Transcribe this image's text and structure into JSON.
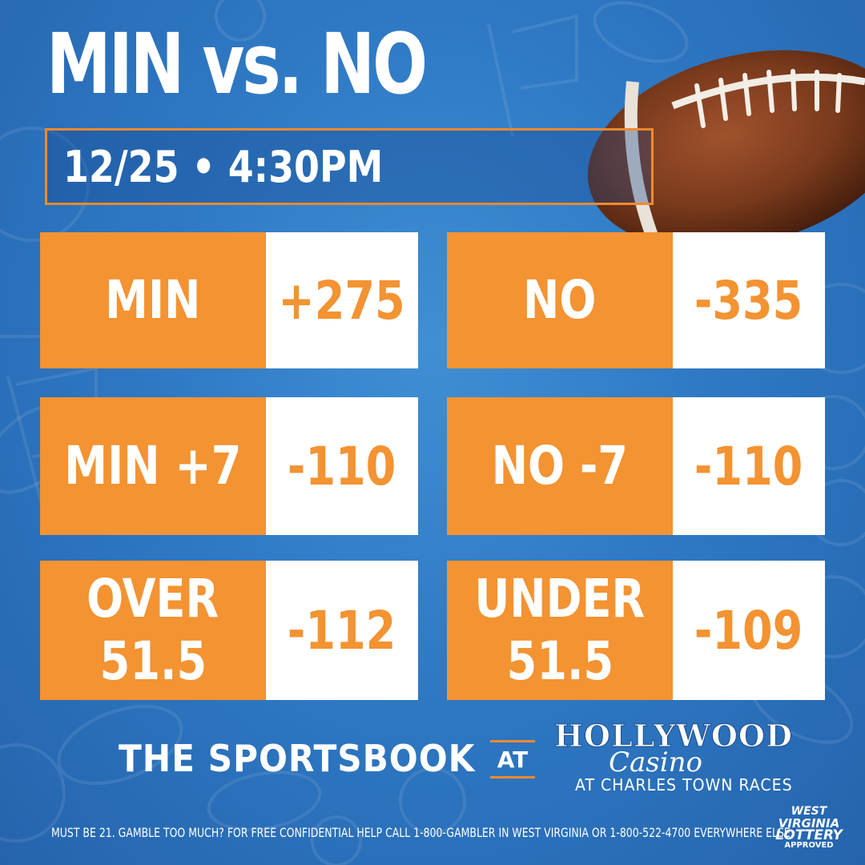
{
  "title": "MIN vs. NO",
  "datetime": "12/25 • 4:30PM",
  "odds": [
    {
      "label": "MIN",
      "value": "+275"
    },
    {
      "label": "NO",
      "value": "-335"
    },
    {
      "label": "MIN +7",
      "value": "-110"
    },
    {
      "label": "NO -7",
      "value": "-110"
    },
    {
      "label_line1": "OVER",
      "label_line2": "51.5",
      "value": "-112"
    },
    {
      "label_line1": "UNDER",
      "label_line2": "51.5",
      "value": "-109"
    }
  ],
  "footer": {
    "sportsbook": "THE SPORTSBOOK",
    "at": "AT",
    "brand_line1": "HOLLYWOOD",
    "brand_line2": "Casino",
    "brand_line3": "AT CHARLES TOWN RACES",
    "disclaimer": "MUST BE 21. GAMBLE TOO MUCH? FOR FREE CONFIDENTIAL HELP CALL 1-800-GAMBLER IN WEST VIRGINIA OR 1-800-522-4700 EVERYWHERE ELSE.",
    "lottery_line1": "WEST",
    "lottery_line2": "VIRGINIA",
    "lottery_line3": "LOTTERY",
    "lottery_line4": "APPROVED"
  },
  "colors": {
    "accent_orange": "#f39332",
    "background_blue": "#2f79c4",
    "text_white": "#ffffff"
  },
  "icons": [
    "football-icon",
    "sports-pattern-background"
  ]
}
